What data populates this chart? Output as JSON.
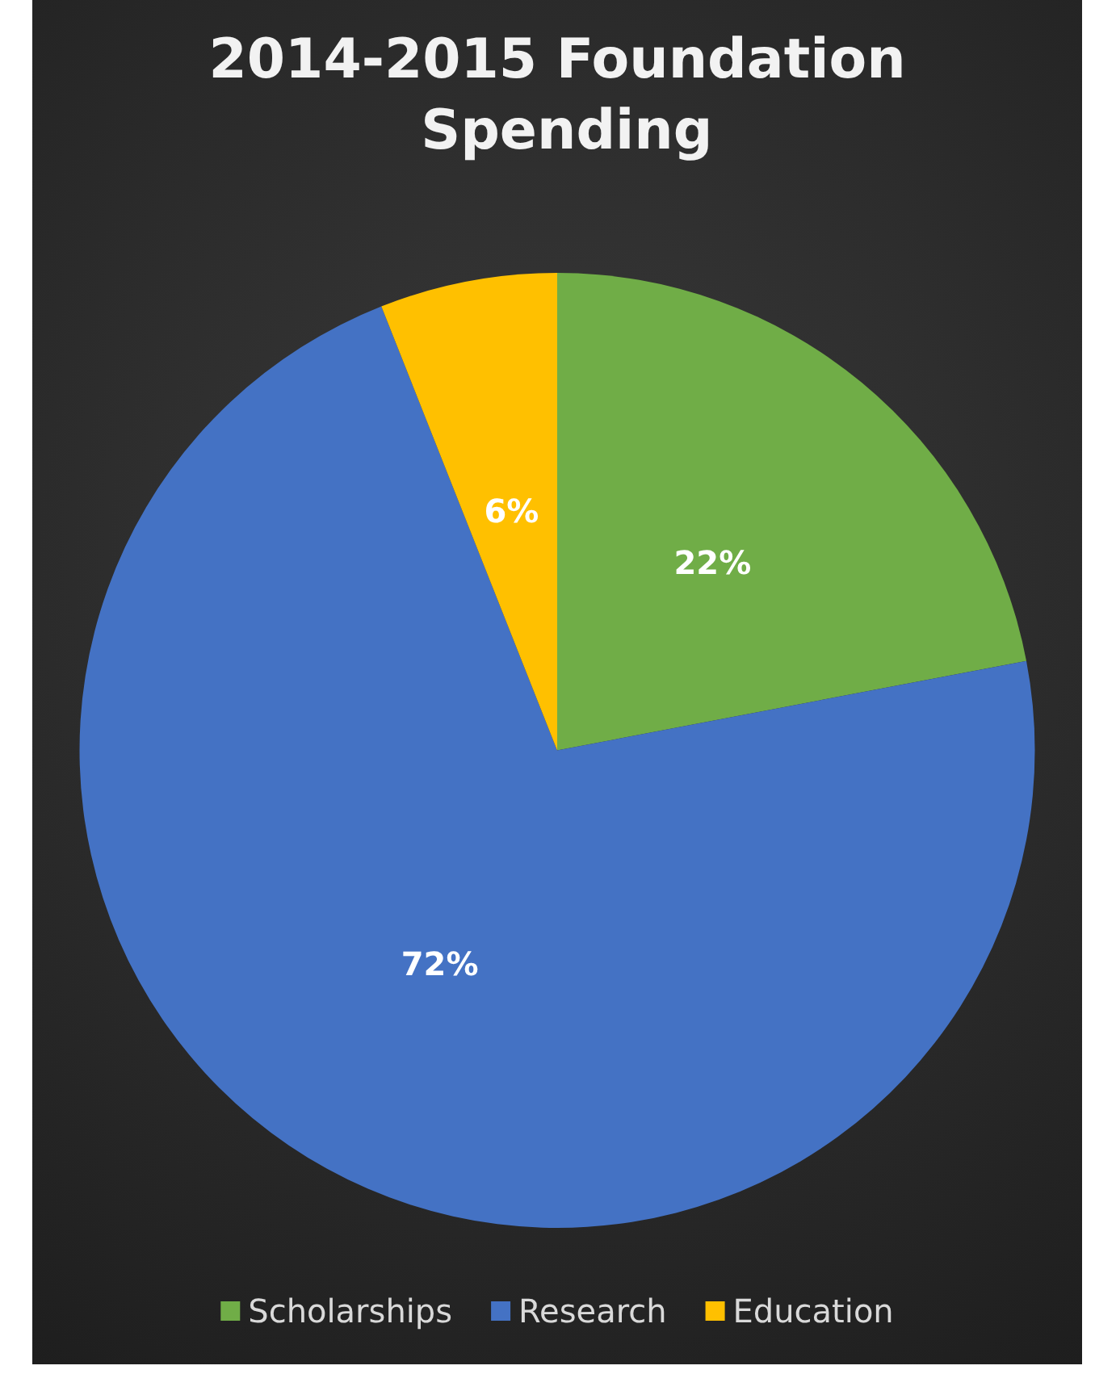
{
  "chart_data": {
    "type": "pie",
    "title": "2014-2015 Foundation Spending",
    "categories": [
      "Scholarships",
      "Research",
      "Education"
    ],
    "values": [
      22,
      72,
      6
    ],
    "colors": [
      "#70ad47",
      "#4472c4",
      "#ffc000"
    ],
    "value_labels": [
      "22%",
      "72%",
      "6%"
    ],
    "legend": "bottom"
  }
}
